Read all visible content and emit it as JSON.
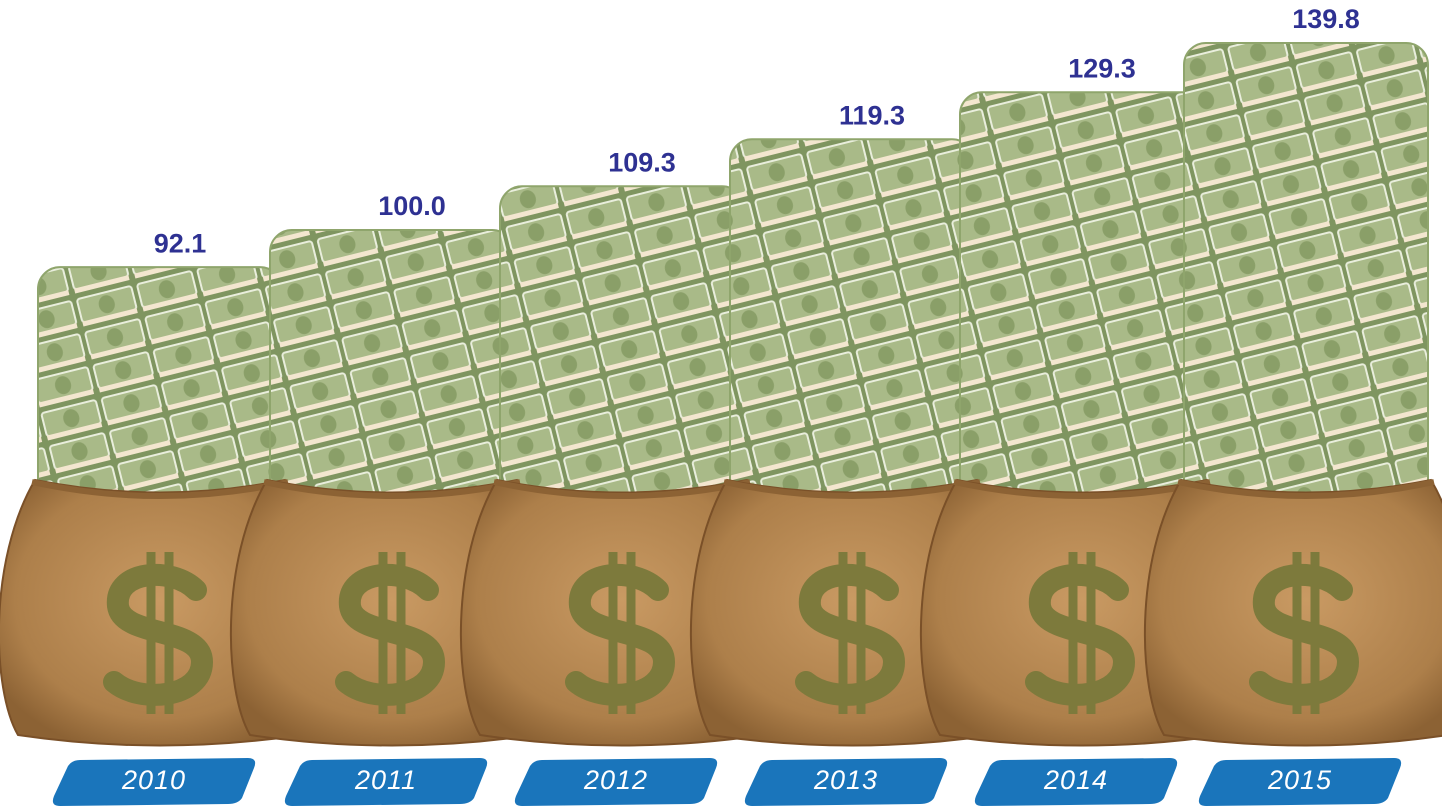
{
  "chart_data": {
    "type": "bar",
    "categories": [
      "2010",
      "2011",
      "2012",
      "2013",
      "2014",
      "2015"
    ],
    "values": [
      92.1,
      100.0,
      109.3,
      119.3,
      129.3,
      139.8
    ],
    "value_labels": [
      "92.1",
      "100.0",
      "109.3",
      "119.3",
      "129.3",
      "139.8"
    ],
    "color": "#8fa56c"
  }
}
